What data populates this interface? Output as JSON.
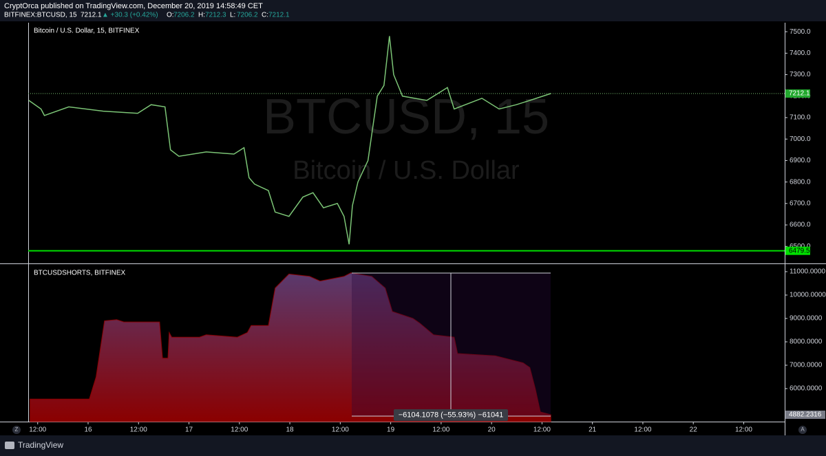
{
  "header": {
    "publisher": "CryptOrca published on TradingView.com, December 20, 2019 14:58:49 CET",
    "symbol": "BITFINEX:BTCUSD, 15",
    "last": "7212.1",
    "change": "▲ +30.3 (+0.42%)",
    "ohlc": [
      "O:",
      "7206.2",
      "H:",
      "7212.3",
      "L:",
      "7206.2",
      "C:",
      "7212.1"
    ],
    "axis_buttons": [
      "Z",
      "A"
    ],
    "brand": "TradingView"
  },
  "chart_data": [
    {
      "type": "line",
      "title": "Bitcoin / U.S. Dollar, 15, BITFINEX",
      "watermark": [
        "BTCUSD, 15",
        "Bitcoin / U.S. Dollar"
      ],
      "color": "#7cc576",
      "x": [
        9.9,
        12.8,
        13.6,
        19.4,
        27.6,
        35.8,
        39.0,
        42.3,
        43.6,
        45.6,
        52.1,
        58.7,
        61.1,
        62.3,
        63.6,
        66.9,
        68.5,
        71.8,
        75.1,
        77.5,
        80.0,
        83.3,
        84.9,
        86.1,
        86.9,
        88.2,
        90.6,
        92.8,
        94.4,
        95.7,
        96.7,
        98.8,
        104.6,
        109.5,
        111.1,
        117.7,
        121.8,
        125.9,
        129.1,
        134.1
      ],
      "values": [
        7180,
        7140,
        7110,
        7150,
        7130,
        7120,
        7160,
        7150,
        6950,
        6920,
        6940,
        6930,
        6960,
        6820,
        6790,
        6760,
        6660,
        6640,
        6730,
        6750,
        6680,
        6700,
        6640,
        6510,
        6690,
        6800,
        6900,
        7200,
        7250,
        7480,
        7300,
        7200,
        7180,
        7240,
        7140,
        7190,
        7140,
        7160,
        7180,
        7212.1
      ],
      "xlim": [
        9.75,
        189.75
      ],
      "ylim": [
        6424,
        7542
      ],
      "yticks": [
        {
          "value": 6500,
          "label": "6500.0"
        },
        {
          "value": 6600,
          "label": "6600.0"
        },
        {
          "value": 6700,
          "label": "6700.0"
        },
        {
          "value": 6800,
          "label": "6800.0"
        },
        {
          "value": 6900,
          "label": "6900.0"
        },
        {
          "value": 7000,
          "label": "7000.0"
        },
        {
          "value": 7100,
          "label": "7100.0"
        },
        {
          "value": 7200,
          "label": "7200.0"
        },
        {
          "value": 7300,
          "label": "7300.0"
        },
        {
          "value": 7400,
          "label": "7400.0"
        },
        {
          "value": 7500,
          "label": "7500.0"
        }
      ],
      "last_value": 7212.1,
      "hline": 6479.5,
      "hline_color": "#00e000"
    },
    {
      "type": "area",
      "title": "BTCUSDSHORTS, BITFINEX",
      "color": "#8b0000",
      "x": [
        10.2,
        24.3,
        25.9,
        27.9,
        30.8,
        32.5,
        41.0,
        41.7,
        43.0,
        43.3,
        43.9,
        50.5,
        52.1,
        59.5,
        61.9,
        62.8,
        66.9,
        68.5,
        71.8,
        76.7,
        79.2,
        84.9,
        86.5,
        91.5,
        94.7,
        96.4,
        101.3,
        102.9,
        106.2,
        111.1,
        111.9,
        120.9,
        127.5,
        129.1,
        130.4,
        131.6,
        134.1
      ],
      "values": [
        5550,
        5550,
        6500,
        8900,
        8950,
        8850,
        8850,
        7300,
        7300,
        8400,
        8200,
        8200,
        8300,
        8200,
        8400,
        8700,
        8700,
        10300,
        10900,
        10800,
        10600,
        10800,
        10950,
        10800,
        10300,
        9300,
        9000,
        8800,
        8300,
        8200,
        7500,
        7400,
        7100,
        6900,
        6000,
        5000,
        4882.2316
      ],
      "xlim": [
        9.75,
        189.75
      ],
      "ylim": [
        4588,
        11294
      ],
      "yticks": [
        {
          "value": 6000,
          "label": "6000.0000"
        },
        {
          "value": 7000,
          "label": "7000.0000"
        },
        {
          "value": 8000,
          "label": "8000.0000"
        },
        {
          "value": 9000,
          "label": "9000.0000"
        },
        {
          "value": 10000,
          "label": "10000.0000"
        },
        {
          "value": 11000,
          "label": "11000.0000"
        }
      ],
      "xticks": [
        {
          "value": 12,
          "label": "12:00"
        },
        {
          "value": 24,
          "label": "16"
        },
        {
          "value": 36,
          "label": "12:00"
        },
        {
          "value": 48,
          "label": "17"
        },
        {
          "value": 60,
          "label": "12:00"
        },
        {
          "value": 72,
          "label": "18"
        },
        {
          "value": 84,
          "label": "12:00"
        },
        {
          "value": 96,
          "label": "19"
        },
        {
          "value": 108,
          "label": "12:00"
        },
        {
          "value": 120,
          "label": "20"
        },
        {
          "value": 132,
          "label": "12:00"
        },
        {
          "value": 144,
          "label": "21"
        },
        {
          "value": 156,
          "label": "12:00"
        },
        {
          "value": 168,
          "label": "22"
        },
        {
          "value": 180,
          "label": "12:00"
        }
      ],
      "last_value": 4882.2316,
      "measure_label": "−6104.1078 (−55.93%) −61041"
    }
  ]
}
